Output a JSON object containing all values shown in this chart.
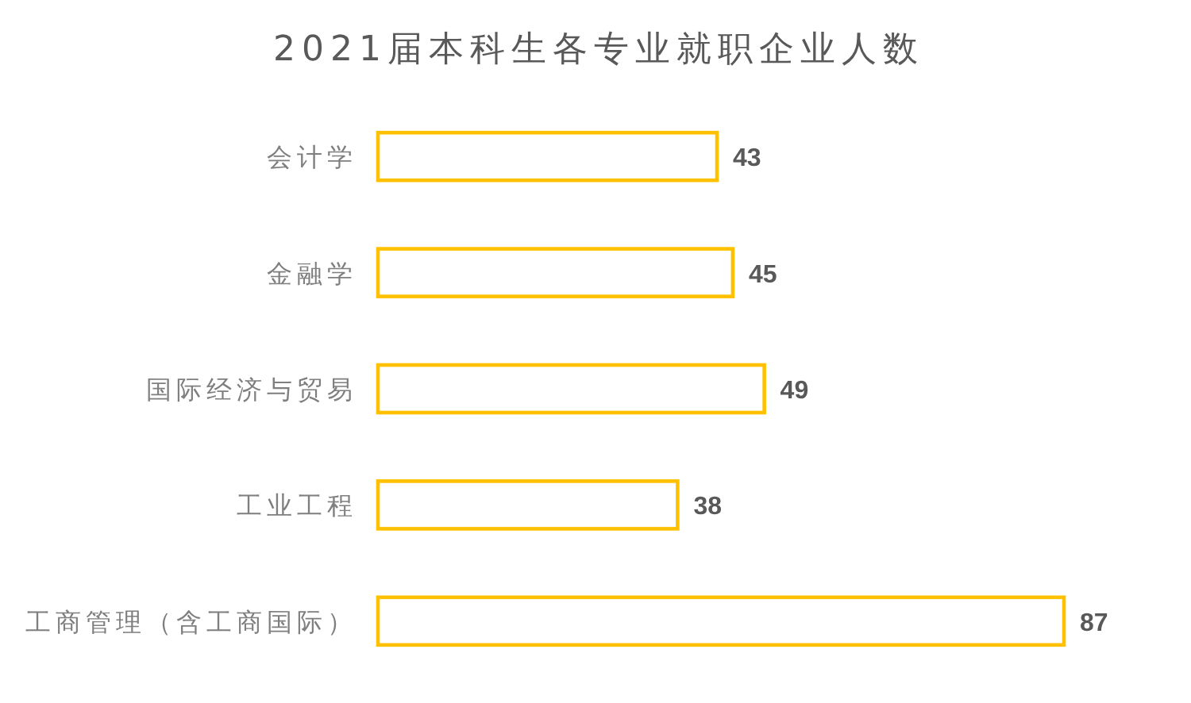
{
  "chart_data": {
    "type": "bar",
    "orientation": "horizontal",
    "title": "2021届本科生各专业就职企业人数",
    "categories": [
      "会计学",
      "金融学",
      "国际经济与贸易",
      "工业工程",
      "工商管理（含工商国际）"
    ],
    "values": [
      43,
      45,
      49,
      38,
      87
    ],
    "color": "#ffc000",
    "data_labels": true
  }
}
